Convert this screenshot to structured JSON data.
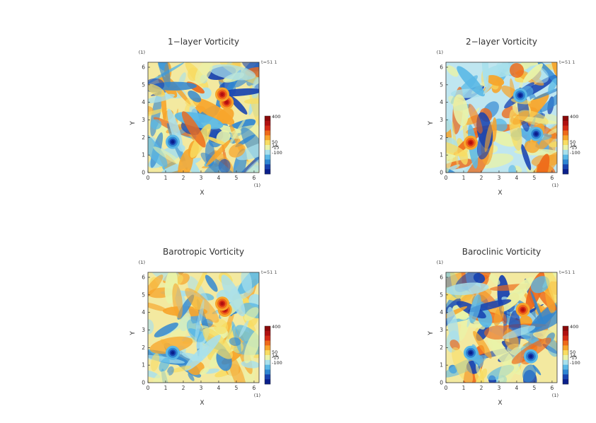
{
  "chart_data": [
    {
      "type": "heatmap",
      "title": "1−layer Vorticity",
      "xlabel": "X",
      "ylabel": "Y",
      "xlim": [
        0,
        6.283
      ],
      "ylim": [
        0,
        6.283
      ],
      "x_ticks": [
        "0",
        "1",
        "2",
        "3",
        "4",
        "5",
        "6"
      ],
      "y_ticks": [
        "0",
        "1",
        "2",
        "3",
        "4",
        "5",
        "6"
      ],
      "unit_label": "(1)",
      "time_label": "t=51 1",
      "colorbar_labels": [
        "400",
        "50",
        "14",
        "-15",
        "-100"
      ],
      "colorbar_values": [
        400,
        50,
        14,
        -15,
        -100
      ],
      "colorbar_colors": [
        "#8b0a0a",
        "#b01010",
        "#d42a14",
        "#ee6a1a",
        "#f7a52b",
        "#f8dc62",
        "#e9f3a8",
        "#a8e0ec",
        "#5ab8e6",
        "#2f86d2",
        "#1843b0",
        "#0a1f8c"
      ],
      "vortices": [
        {
          "x": 1.4,
          "y": 1.75,
          "sign": "negative"
        },
        {
          "x": 4.45,
          "y": 4.0,
          "sign": "positive"
        },
        {
          "x": 4.2,
          "y": 4.45,
          "sign": "positive"
        }
      ]
    },
    {
      "type": "heatmap",
      "title": "2−layer Vorticity",
      "xlabel": "X",
      "ylabel": "Y",
      "xlim": [
        0,
        6.283
      ],
      "ylim": [
        0,
        6.283
      ],
      "x_ticks": [
        "0",
        "1",
        "2",
        "3",
        "4",
        "5",
        "6"
      ],
      "y_ticks": [
        "0",
        "1",
        "2",
        "3",
        "4",
        "5",
        "6"
      ],
      "unit_label": "(1)",
      "time_label": "t=51 1",
      "colorbar_labels": [
        "400",
        "50",
        "14",
        "-15",
        "-100"
      ],
      "colorbar_values": [
        400,
        50,
        14,
        -15,
        -100
      ],
      "colorbar_colors": [
        "#8b0a0a",
        "#b01010",
        "#d42a14",
        "#ee6a1a",
        "#f7a52b",
        "#f8dc62",
        "#e9f3a8",
        "#a8e0ec",
        "#5ab8e6",
        "#2f86d2",
        "#1843b0",
        "#0a1f8c"
      ],
      "vortices": [
        {
          "x": 1.4,
          "y": 1.7,
          "sign": "positive"
        },
        {
          "x": 5.1,
          "y": 2.2,
          "sign": "negative"
        },
        {
          "x": 4.2,
          "y": 4.4,
          "sign": "negative"
        }
      ]
    },
    {
      "type": "heatmap",
      "title": "Barotropic Vorticity",
      "xlabel": "X",
      "ylabel": "Y",
      "xlim": [
        0,
        6.283
      ],
      "ylim": [
        0,
        6.283
      ],
      "x_ticks": [
        "0",
        "1",
        "2",
        "3",
        "4",
        "5",
        "6"
      ],
      "y_ticks": [
        "0",
        "1",
        "2",
        "3",
        "4",
        "5",
        "6"
      ],
      "unit_label": "(1)",
      "time_label": "t=51 1",
      "colorbar_labels": [
        "400",
        "50",
        "14",
        "-15",
        "-100"
      ],
      "colorbar_values": [
        400,
        50,
        14,
        -15,
        -100
      ],
      "colorbar_colors": [
        "#8b0a0a",
        "#b01010",
        "#d42a14",
        "#ee6a1a",
        "#f7a52b",
        "#f8dc62",
        "#e9f3a8",
        "#a8e0ec",
        "#5ab8e6",
        "#2f86d2",
        "#1843b0",
        "#0a1f8c"
      ],
      "vortices": [
        {
          "x": 1.4,
          "y": 1.7,
          "sign": "negative"
        },
        {
          "x": 4.35,
          "y": 4.15,
          "sign": "positive"
        },
        {
          "x": 4.2,
          "y": 4.5,
          "sign": "positive"
        }
      ]
    },
    {
      "type": "heatmap",
      "title": "Baroclinic Vorticity",
      "xlabel": "X",
      "ylabel": "Y",
      "xlim": [
        0,
        6.283
      ],
      "ylim": [
        0,
        6.283
      ],
      "x_ticks": [
        "0",
        "1",
        "2",
        "3",
        "4",
        "5",
        "6"
      ],
      "y_ticks": [
        "0",
        "1",
        "2",
        "3",
        "4",
        "5",
        "6"
      ],
      "unit_label": "(1)",
      "time_label": "t=51 1",
      "colorbar_labels": [
        "400",
        "50",
        "14",
        "-15",
        "-100"
      ],
      "colorbar_values": [
        400,
        50,
        14,
        -15,
        -100
      ],
      "colorbar_colors": [
        "#8b0a0a",
        "#b01010",
        "#d42a14",
        "#ee6a1a",
        "#f7a52b",
        "#f8dc62",
        "#e9f3a8",
        "#a8e0ec",
        "#5ab8e6",
        "#2f86d2",
        "#1843b0",
        "#0a1f8c"
      ],
      "vortices": [
        {
          "x": 1.4,
          "y": 1.7,
          "sign": "negative"
        },
        {
          "x": 4.35,
          "y": 4.15,
          "sign": "positive"
        },
        {
          "x": 4.8,
          "y": 1.5,
          "sign": "negative"
        }
      ]
    }
  ]
}
